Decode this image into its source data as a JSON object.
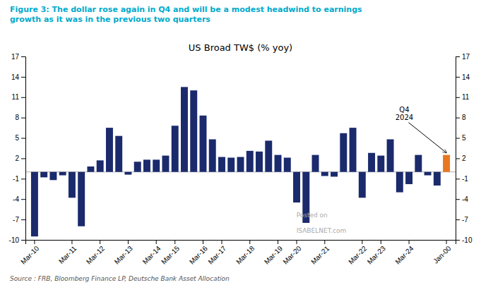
{
  "chart_data": {
    "type": "bar",
    "title": "US Broad TW$ (% yoy)",
    "subtitle": "Figure 3: The dollar rose again in Q4 and will be a modest headwind to earnings\ngrowth as it was in the previous two quarters",
    "source": "Source : FRB, Bloomberg Finance LP, Deutsche Bank Asset Allocation",
    "annotations": [
      {
        "text": "Q4\n2024"
      }
    ],
    "watermark": "Posted on\nISABELNET.com",
    "categories": [
      "Mar-10",
      null,
      null,
      null,
      "Mar-11",
      null,
      null,
      "Mar-12",
      null,
      null,
      "Mar-13",
      null,
      null,
      "Mar-14",
      null,
      "Mar-15",
      null,
      null,
      "Mar-16",
      null,
      "Mar-17",
      null,
      null,
      "Mar-18",
      null,
      null,
      "Mar-19",
      null,
      "Mar-20",
      null,
      null,
      "Mar-21",
      null,
      null,
      null,
      "Mar-22",
      null,
      "Mar-23",
      null,
      null,
      "Mar-24",
      null,
      null,
      null,
      "Jan-00"
    ],
    "values": [
      -9.5,
      -0.8,
      -1.2,
      -0.5,
      -3.8,
      -8.0,
      0.8,
      1.7,
      6.5,
      5.3,
      -0.4,
      1.5,
      1.8,
      1.8,
      2.4,
      6.8,
      12.5,
      12.0,
      8.3,
      4.8,
      2.2,
      2.1,
      2.2,
      3.1,
      3.0,
      4.6,
      2.5,
      2.1,
      -4.5,
      -7.5,
      2.5,
      -0.6,
      -0.7,
      5.7,
      6.5,
      -3.8,
      2.8,
      2.4,
      4.8,
      -3.0,
      -1.8,
      2.5,
      -0.5,
      -2.0,
      2.5
    ],
    "colors": [
      "#1a2a6c",
      "#1a2a6c",
      "#1a2a6c",
      "#1a2a6c",
      "#1a2a6c",
      "#1a2a6c",
      "#1a2a6c",
      "#1a2a6c",
      "#1a2a6c",
      "#1a2a6c",
      "#1a2a6c",
      "#1a2a6c",
      "#1a2a6c",
      "#1a2a6c",
      "#1a2a6c",
      "#1a2a6c",
      "#1a2a6c",
      "#1a2a6c",
      "#1a2a6c",
      "#1a2a6c",
      "#1a2a6c",
      "#1a2a6c",
      "#1a2a6c",
      "#1a2a6c",
      "#1a2a6c",
      "#1a2a6c",
      "#1a2a6c",
      "#1a2a6c",
      "#1a2a6c",
      "#1a2a6c",
      "#1a2a6c",
      "#1a2a6c",
      "#1a2a6c",
      "#1a2a6c",
      "#1a2a6c",
      "#1a2a6c",
      "#1a2a6c",
      "#1a2a6c",
      "#1a2a6c",
      "#1a2a6c",
      "#1a2a6c",
      "#1a2a6c",
      "#1a2a6c",
      "#1a2a6c",
      "#e87722"
    ],
    "ylim": [
      -10,
      17
    ],
    "yticks": [
      -10,
      -7,
      -4,
      -1,
      2,
      5,
      8,
      11,
      14,
      17
    ],
    "y2lim": [
      -10,
      17
    ],
    "y2ticks": [
      -10,
      -7,
      -4,
      -1,
      2,
      5,
      8,
      11,
      14,
      17
    ],
    "grid": false
  }
}
